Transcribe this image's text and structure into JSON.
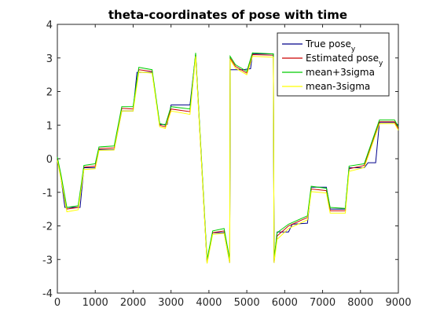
{
  "chart_data": {
    "type": "line",
    "title": "theta-coordinates of pose with time",
    "xlabel": "",
    "ylabel": "",
    "xlim": [
      0,
      9000
    ],
    "ylim": [
      -4,
      4
    ],
    "xticks": [
      "0",
      "1000",
      "2000",
      "3000",
      "4000",
      "5000",
      "6000",
      "7000",
      "8000",
      "9000"
    ],
    "yticks": [
      "4",
      "3",
      "2",
      "1",
      "0",
      "-1",
      "-2",
      "-3",
      "-4"
    ],
    "grid": false,
    "legend_position": "top-right",
    "legend": [
      {
        "label": "True pose",
        "sub": "y",
        "color": "#00008b"
      },
      {
        "label": "Estimated pose",
        "sub": "y",
        "color": "#cc0000"
      },
      {
        "label": "mean+3sigma",
        "sub": "",
        "color": "#00cc00"
      },
      {
        "label": "mean-3sigma",
        "sub": "",
        "color": "#ffff00"
      }
    ],
    "series": [
      {
        "name": "True pose_y",
        "color": "#00008b",
        "points": [
          [
            0,
            0
          ],
          [
            100,
            -0.6
          ],
          [
            200,
            -1.45
          ],
          [
            600,
            -1.45
          ],
          [
            700,
            -0.27
          ],
          [
            1000,
            -0.27
          ],
          [
            1100,
            0.27
          ],
          [
            1500,
            0.27
          ],
          [
            1700,
            1.42
          ],
          [
            2000,
            1.42
          ],
          [
            2100,
            2.57
          ],
          [
            2500,
            2.57
          ],
          [
            2700,
            1.02
          ],
          [
            2900,
            1.02
          ],
          [
            3000,
            1.6
          ],
          [
            3500,
            1.6
          ],
          [
            3650,
            3.1
          ],
          [
            3950,
            -3.1
          ],
          [
            4100,
            -2.2
          ],
          [
            4400,
            -2.2
          ],
          [
            4550,
            -3.1
          ],
          [
            4560,
            2.65
          ],
          [
            4900,
            2.65
          ],
          [
            5100,
            2.68
          ],
          [
            5150,
            3.12
          ],
          [
            5700,
            3.12
          ],
          [
            5720,
            -3.1
          ],
          [
            5800,
            -2.18
          ],
          [
            6100,
            -2.18
          ],
          [
            6200,
            -1.95
          ],
          [
            6600,
            -1.92
          ],
          [
            6700,
            -0.85
          ],
          [
            7100,
            -0.85
          ],
          [
            7200,
            -1.5
          ],
          [
            7600,
            -1.5
          ],
          [
            7700,
            -0.27
          ],
          [
            8100,
            -0.27
          ],
          [
            8200,
            -0.12
          ],
          [
            8400,
            -0.12
          ],
          [
            8500,
            1.08
          ],
          [
            8900,
            1.08
          ],
          [
            9000,
            1.0
          ]
        ]
      },
      {
        "name": "Estimated pose_y",
        "color": "#cc0000",
        "points": [
          [
            0,
            0
          ],
          [
            100,
            -0.55
          ],
          [
            250,
            -1.5
          ],
          [
            550,
            -1.45
          ],
          [
            700,
            -0.25
          ],
          [
            1000,
            -0.22
          ],
          [
            1100,
            0.3
          ],
          [
            1500,
            0.32
          ],
          [
            1700,
            1.5
          ],
          [
            2000,
            1.48
          ],
          [
            2150,
            2.65
          ],
          [
            2500,
            2.6
          ],
          [
            2700,
            1.0
          ],
          [
            2850,
            0.95
          ],
          [
            3000,
            1.48
          ],
          [
            3500,
            1.4
          ],
          [
            3650,
            3.1
          ],
          [
            3950,
            -3.08
          ],
          [
            4100,
            -2.2
          ],
          [
            4400,
            -2.15
          ],
          [
            4550,
            -3.05
          ],
          [
            4560,
            3.0
          ],
          [
            4700,
            2.75
          ],
          [
            5000,
            2.55
          ],
          [
            5150,
            3.1
          ],
          [
            5700,
            3.08
          ],
          [
            5720,
            -3.05
          ],
          [
            5800,
            -2.3
          ],
          [
            6100,
            -2.0
          ],
          [
            6600,
            -1.75
          ],
          [
            6700,
            -0.9
          ],
          [
            7100,
            -0.95
          ],
          [
            7200,
            -1.55
          ],
          [
            7600,
            -1.55
          ],
          [
            7700,
            -0.3
          ],
          [
            8100,
            -0.2
          ],
          [
            8500,
            1.1
          ],
          [
            8900,
            1.1
          ],
          [
            9000,
            0.9
          ]
        ]
      },
      {
        "name": "mean+3sigma",
        "color": "#00cc00",
        "points": [
          [
            0,
            0.05
          ],
          [
            100,
            -0.5
          ],
          [
            250,
            -1.45
          ],
          [
            550,
            -1.4
          ],
          [
            700,
            -0.2
          ],
          [
            1000,
            -0.15
          ],
          [
            1100,
            0.35
          ],
          [
            1500,
            0.38
          ],
          [
            1700,
            1.55
          ],
          [
            2000,
            1.55
          ],
          [
            2150,
            2.72
          ],
          [
            2500,
            2.65
          ],
          [
            2700,
            1.05
          ],
          [
            2850,
            1.0
          ],
          [
            3000,
            1.55
          ],
          [
            3500,
            1.48
          ],
          [
            3650,
            3.15
          ],
          [
            3950,
            -3.0
          ],
          [
            4100,
            -2.15
          ],
          [
            4400,
            -2.08
          ],
          [
            4550,
            -3.0
          ],
          [
            4560,
            3.05
          ],
          [
            4700,
            2.8
          ],
          [
            5000,
            2.6
          ],
          [
            5150,
            3.15
          ],
          [
            5700,
            3.12
          ],
          [
            5720,
            -3.0
          ],
          [
            5800,
            -2.2
          ],
          [
            6100,
            -1.95
          ],
          [
            6600,
            -1.7
          ],
          [
            6700,
            -0.82
          ],
          [
            7100,
            -0.88
          ],
          [
            7200,
            -1.45
          ],
          [
            7600,
            -1.48
          ],
          [
            7700,
            -0.22
          ],
          [
            8100,
            -0.15
          ],
          [
            8500,
            1.15
          ],
          [
            8900,
            1.15
          ],
          [
            9000,
            0.95
          ]
        ]
      },
      {
        "name": "mean-3sigma",
        "color": "#ffff00",
        "points": [
          [
            0,
            -0.05
          ],
          [
            100,
            -0.62
          ],
          [
            250,
            -1.58
          ],
          [
            550,
            -1.52
          ],
          [
            700,
            -0.32
          ],
          [
            1000,
            -0.3
          ],
          [
            1100,
            0.25
          ],
          [
            1500,
            0.26
          ],
          [
            1700,
            1.42
          ],
          [
            2000,
            1.42
          ],
          [
            2150,
            2.58
          ],
          [
            2500,
            2.55
          ],
          [
            2700,
            0.95
          ],
          [
            2850,
            0.9
          ],
          [
            3000,
            1.42
          ],
          [
            3500,
            1.32
          ],
          [
            3650,
            3.05
          ],
          [
            3950,
            -3.12
          ],
          [
            4100,
            -2.25
          ],
          [
            4400,
            -2.22
          ],
          [
            4550,
            -3.1
          ],
          [
            4560,
            2.95
          ],
          [
            4700,
            2.7
          ],
          [
            5000,
            2.5
          ],
          [
            5150,
            3.05
          ],
          [
            5700,
            3.02
          ],
          [
            5720,
            -3.1
          ],
          [
            5800,
            -2.4
          ],
          [
            6100,
            -2.08
          ],
          [
            6600,
            -1.82
          ],
          [
            6700,
            -0.98
          ],
          [
            7100,
            -1.02
          ],
          [
            7200,
            -1.62
          ],
          [
            7600,
            -1.62
          ],
          [
            7700,
            -0.38
          ],
          [
            8100,
            -0.26
          ],
          [
            8500,
            1.04
          ],
          [
            8900,
            1.05
          ],
          [
            9000,
            0.85
          ]
        ]
      }
    ]
  }
}
